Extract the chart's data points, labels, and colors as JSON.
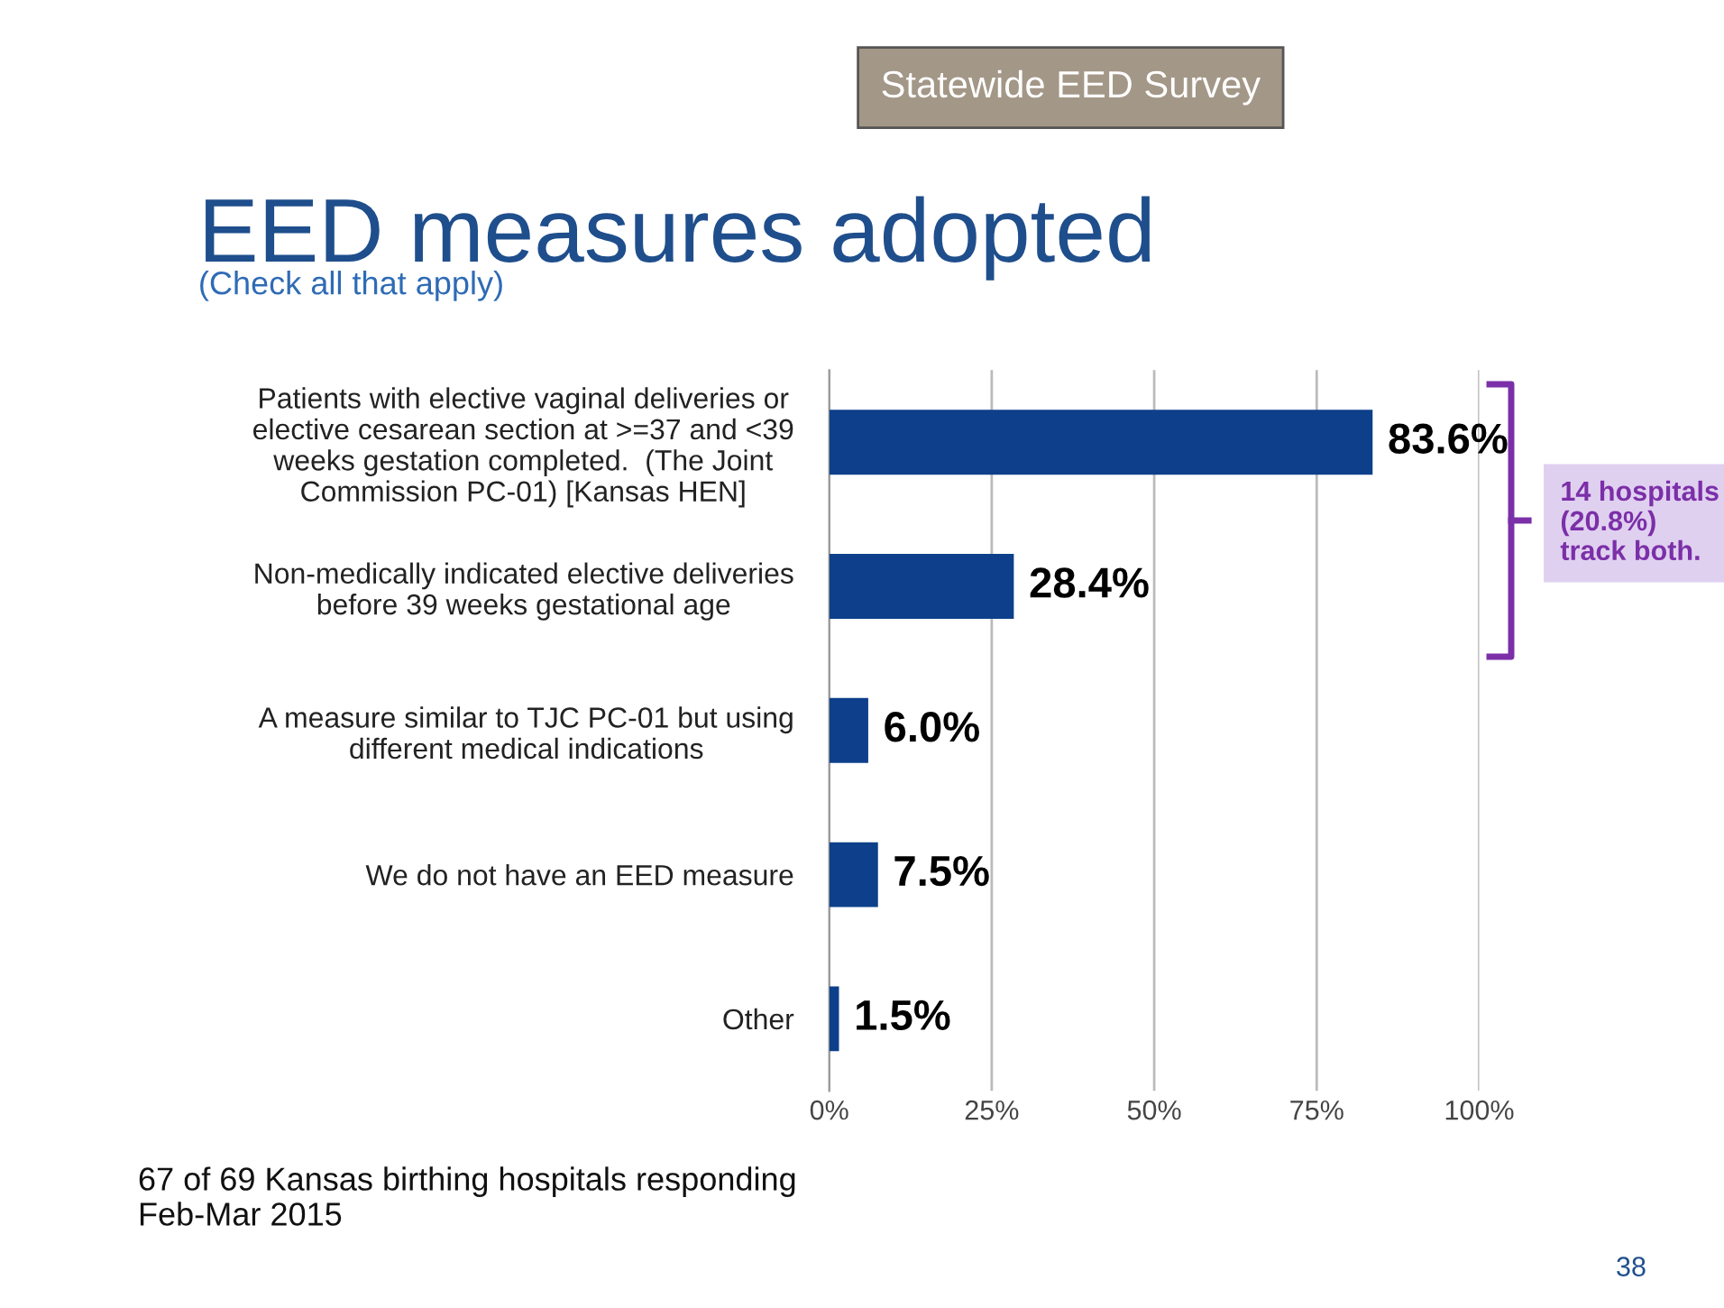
{
  "chart_data": {
    "type": "bar",
    "orientation": "horizontal",
    "title": "EED measures adopted",
    "subtitle": "(Check all that apply)",
    "categories": [
      "Patients with elective vaginal deliveries or\nelective cesarean section at >=37 and <39\nweeks gestation completed.  (The Joint\nCommission PC-01) [Kansas HEN]",
      "Non-medically indicated elective deliveries\nbefore 39 weeks gestational age",
      "A measure similar to TJC PC-01 but using\ndifferent medical indications",
      "We do not have an EED measure",
      "Other"
    ],
    "values": [
      83.6,
      28.4,
      6.0,
      7.5,
      1.5
    ],
    "value_labels": [
      "83.6%",
      "28.4%",
      "6.0%",
      "7.5%",
      "1.5%"
    ],
    "color": "#0d3f8a",
    "xlim": [
      0,
      100
    ],
    "xticks": [
      {
        "value": 0,
        "label": "0%"
      },
      {
        "value": 25,
        "label": "25%"
      },
      {
        "value": 50,
        "label": "50%"
      },
      {
        "value": 75,
        "label": "75%"
      },
      {
        "value": 100,
        "label": "100%"
      }
    ],
    "grid": "x",
    "legend": false,
    "annotations": [
      "Statewide EED Survey",
      "14 hospitals (20.8%) track both.",
      "67 of 69 Kansas birthing hospitals responding\nFeb-Mar 2015",
      "38"
    ]
  }
}
